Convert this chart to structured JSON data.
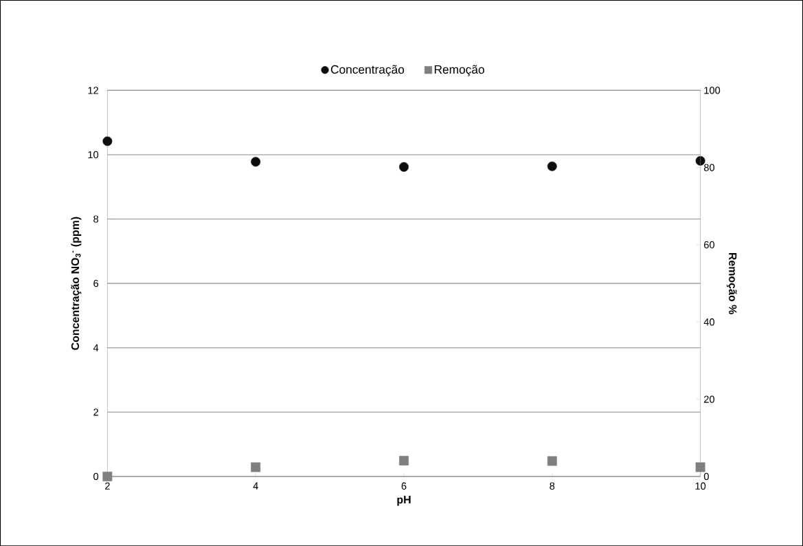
{
  "chart_data": {
    "type": "scatter",
    "xlabel": "pH",
    "ylabel": "Concentração NO$_{3}$$^{-}$ (ppm)",
    "y2label": "Remoção %",
    "x": [
      2,
      4,
      6,
      8,
      10
    ],
    "series": [
      {
        "name": "Concentração",
        "color": "#0d0d0d",
        "marker": "circle",
        "values": [
          10.42,
          9.78,
          9.62,
          9.64,
          9.81
        ]
      },
      {
        "name": "Remoção",
        "color": "#7f7f7f",
        "marker": "square",
        "axis": "y2",
        "values": [
          0,
          2.4,
          4.1,
          4.0,
          2.4
        ]
      }
    ],
    "xlim": [
      2,
      10
    ],
    "xticks": [
      2,
      4,
      6,
      8,
      10
    ],
    "ylim": [
      0,
      12
    ],
    "yticks": [
      0,
      2,
      4,
      6,
      8,
      10,
      12
    ],
    "y2lim": [
      0,
      100
    ],
    "y2ticks": [
      0,
      20,
      40,
      60,
      80,
      100
    ],
    "grid": "y",
    "legend": "top"
  }
}
